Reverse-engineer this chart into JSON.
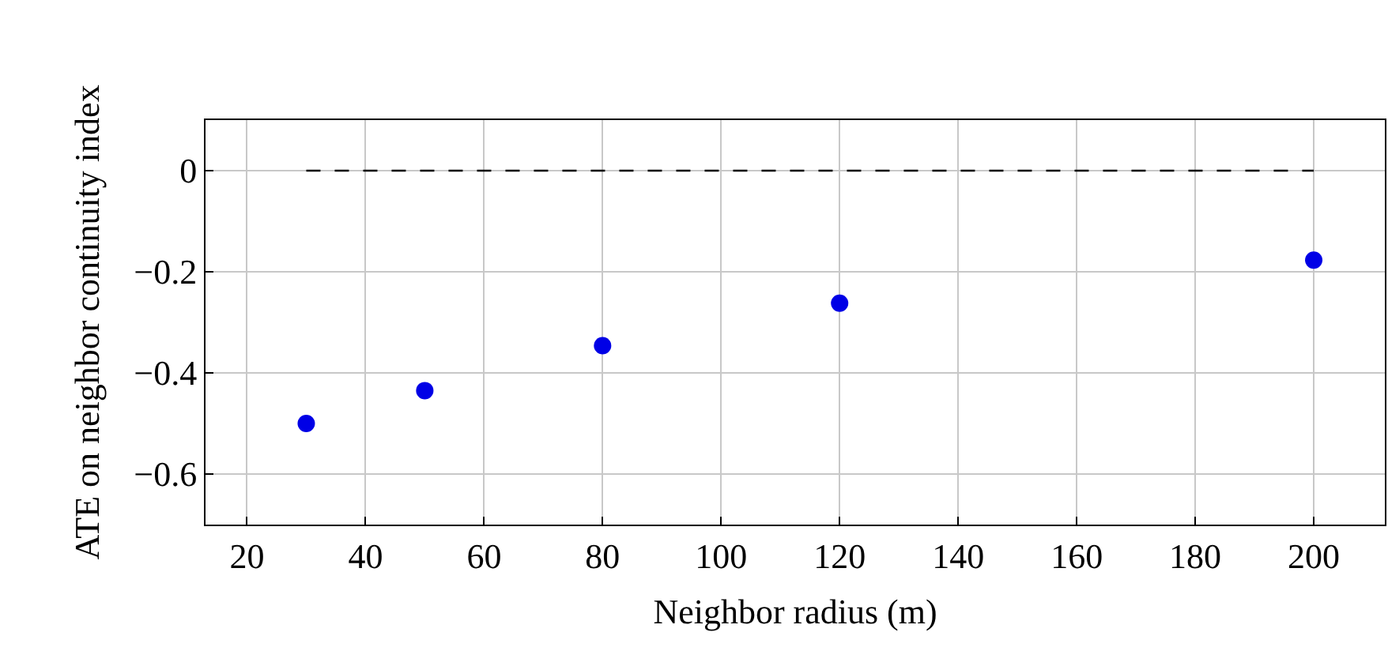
{
  "chart_data": {
    "type": "scatter",
    "xlabel": "Neighbor radius (m)",
    "ylabel": "ATE on neighbor continuity index",
    "xlim": [
      13,
      212
    ],
    "xticks": [
      20,
      40,
      60,
      80,
      100,
      120,
      140,
      160,
      180,
      200
    ],
    "ylim": [
      -0.7,
      0.1
    ],
    "yticks": [
      {
        "value": 0,
        "label": "0"
      },
      {
        "value": -0.2,
        "label": "−0.2"
      },
      {
        "value": -0.4,
        "label": "−0.4"
      },
      {
        "value": -0.6,
        "label": "−0.6"
      }
    ],
    "grid": true,
    "series": [
      {
        "type": "line",
        "x": [
          30,
          200
        ],
        "values": [
          0,
          0
        ],
        "color": "#000000",
        "line_style": "dashed",
        "marker": "none"
      },
      {
        "x": [
          30,
          50,
          80,
          120,
          200
        ],
        "values": [
          -0.5,
          -0.435,
          -0.346,
          -0.262,
          -0.177
        ],
        "color": "#0000e6",
        "marker": "circle"
      }
    ]
  }
}
